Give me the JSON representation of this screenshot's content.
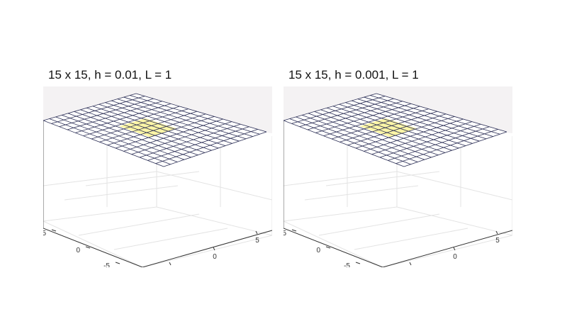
{
  "chart_data": [
    {
      "type": "surface",
      "title": "15 x 15, h = 0.01, L = 1",
      "grid_size": [
        15,
        15
      ],
      "x_ticks": [
        "-5",
        "0",
        "5"
      ],
      "y_ticks": [
        "5",
        "0",
        "-5"
      ],
      "surface_value": "constant (flat plane)",
      "highlight_region": "center patch, yellow",
      "colors": {
        "background": "#f4f2f3",
        "mesh": "#2b2e55",
        "face": "#ffffff",
        "highlight": "#fbf5a6",
        "grid": "#e3e3e3"
      }
    },
    {
      "type": "surface",
      "title": "15 x 15, h = 0.001, L = 1",
      "grid_size": [
        15,
        15
      ],
      "x_ticks": [
        "-5",
        "0",
        "5"
      ],
      "y_ticks": [
        "5",
        "0",
        "-5"
      ],
      "surface_value": "constant (flat plane)",
      "highlight_region": "center patch, yellow",
      "colors": {
        "background": "#f4f2f3",
        "mesh": "#2b2e55",
        "face": "#ffffff",
        "highlight": "#fbf5a6",
        "grid": "#e3e3e3"
      }
    }
  ]
}
